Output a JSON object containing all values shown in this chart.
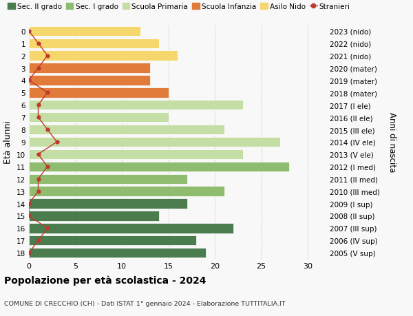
{
  "ages": [
    18,
    17,
    16,
    15,
    14,
    13,
    12,
    11,
    10,
    9,
    8,
    7,
    6,
    5,
    4,
    3,
    2,
    1,
    0
  ],
  "years": [
    "2005 (V sup)",
    "2006 (IV sup)",
    "2007 (III sup)",
    "2008 (II sup)",
    "2009 (I sup)",
    "2010 (III med)",
    "2011 (II med)",
    "2012 (I med)",
    "2013 (V ele)",
    "2014 (IV ele)",
    "2015 (III ele)",
    "2016 (II ele)",
    "2017 (I ele)",
    "2018 (mater)",
    "2019 (mater)",
    "2020 (mater)",
    "2021 (nido)",
    "2022 (nido)",
    "2023 (nido)"
  ],
  "values": [
    19,
    18,
    22,
    14,
    17,
    21,
    17,
    28,
    23,
    27,
    21,
    15,
    23,
    15,
    13,
    13,
    16,
    14,
    12
  ],
  "stranieri": [
    0,
    1,
    2,
    0,
    0,
    1,
    1,
    2,
    1,
    3,
    2,
    1,
    1,
    2,
    0,
    1,
    2,
    1,
    0
  ],
  "bar_colors": [
    "#4a7c4e",
    "#4a7c4e",
    "#4a7c4e",
    "#4a7c4e",
    "#4a7c4e",
    "#8fbc6e",
    "#8fbc6e",
    "#8fbc6e",
    "#c5dea5",
    "#c5dea5",
    "#c5dea5",
    "#c5dea5",
    "#c5dea5",
    "#e07b3a",
    "#e07b3a",
    "#e07b3a",
    "#f5d76e",
    "#f5d76e",
    "#f5d76e"
  ],
  "stranieri_color": "#c0392b",
  "title": "Popolazione per età scolastica - 2024",
  "subtitle": "COMUNE DI CRECCHIO (CH) - Dati ISTAT 1° gennaio 2024 - Elaborazione TUTTITALIA.IT",
  "ylabel": "Età alunni",
  "right_label": "Anni di nascita",
  "xlim": [
    0,
    32
  ],
  "xticks": [
    0,
    5,
    10,
    15,
    20,
    25,
    30
  ],
  "bg_color": "#f8f8f8",
  "grid_color": "#cccccc",
  "legend_items": [
    {
      "label": "Sec. II grado",
      "color": "#4a7c4e"
    },
    {
      "label": "Sec. I grado",
      "color": "#8fbc6e"
    },
    {
      "label": "Scuola Primaria",
      "color": "#c5dea5"
    },
    {
      "label": "Scuola Infanzia",
      "color": "#e07b3a"
    },
    {
      "label": "Asilo Nido",
      "color": "#f5d76e"
    },
    {
      "label": "Stranieri",
      "color": "#c0392b"
    }
  ]
}
